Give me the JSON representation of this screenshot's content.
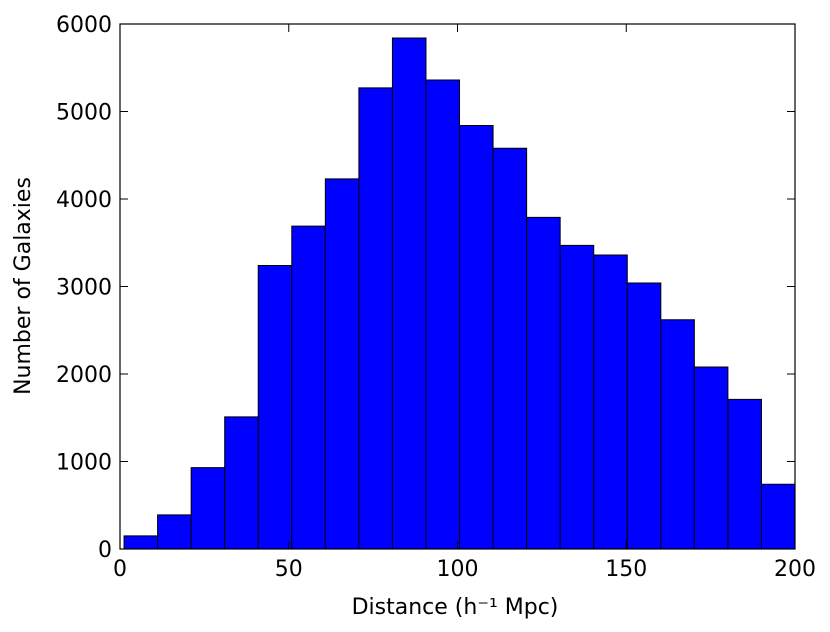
{
  "chart_data": {
    "type": "histogram",
    "xlabel": "Distance (h⁻¹ Mpc)",
    "ylabel": "Number of Galaxies",
    "bins": [
      1.2,
      11.14,
      21.08,
      31.02,
      40.96,
      50.9,
      60.84,
      70.78,
      80.72,
      90.66,
      100.6,
      110.54,
      120.48,
      130.42,
      140.36,
      150.3,
      160.24,
      170.18,
      180.12,
      190.06,
      200
    ],
    "values": [
      150,
      390,
      930,
      1510,
      3240,
      3690,
      4230,
      5270,
      5840,
      5360,
      4840,
      4580,
      3790,
      3470,
      3360,
      3040,
      2620,
      2080,
      1710,
      740
    ],
    "color": "#0000ff",
    "xlim": [
      0,
      200
    ],
    "xticks": [
      0,
      50,
      100,
      150,
      200
    ],
    "ylim": [
      0,
      6000
    ],
    "yticks": [
      0,
      1000,
      2000,
      3000,
      4000,
      5000,
      6000
    ]
  }
}
